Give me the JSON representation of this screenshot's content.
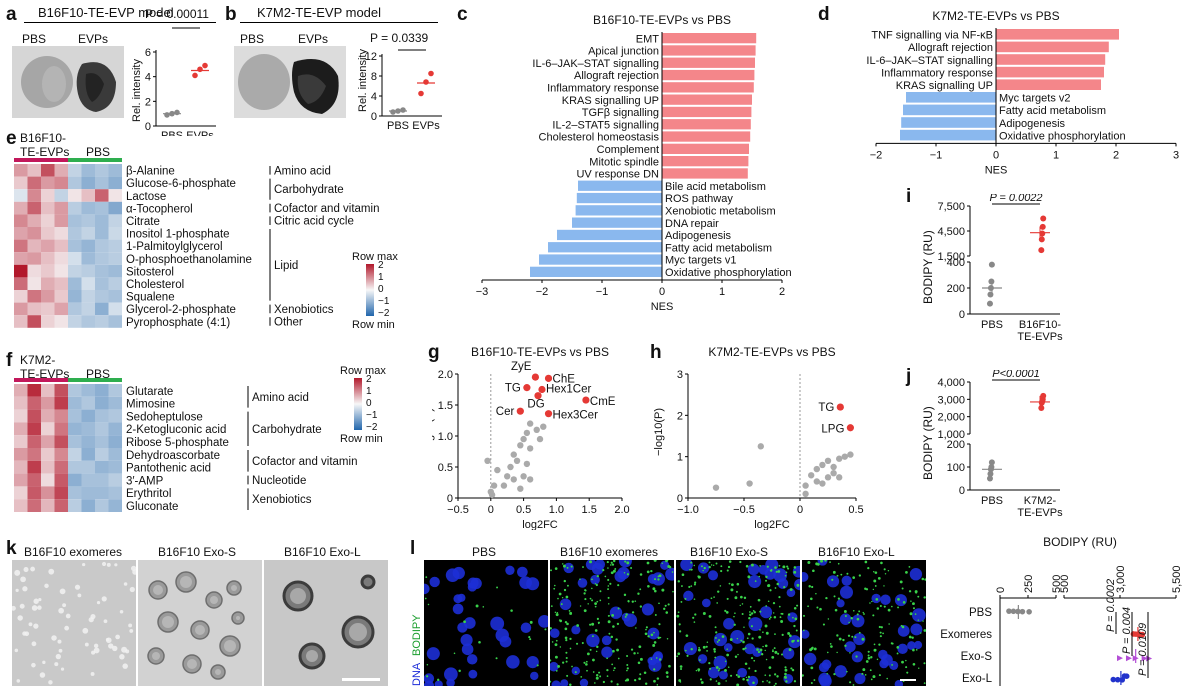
{
  "panel_labels": {
    "a": "a",
    "b": "b",
    "c": "c",
    "d": "d",
    "e": "e",
    "f": "f",
    "g": "g",
    "h": "h",
    "i": "i",
    "j": "j",
    "k": "k",
    "l": "l"
  },
  "panel_a": {
    "title": "B16F10-TE-EVP model",
    "img_labels": [
      "PBS",
      "EVPs"
    ],
    "pvalue": "P = 0.00011",
    "chart_data": {
      "type": "scatter",
      "ylabel": "Rel. intensity",
      "categories": [
        "PBS",
        "EVPs"
      ],
      "yticks": [
        "0",
        "2",
        "4",
        "6"
      ],
      "ylim": [
        0,
        6
      ],
      "points": {
        "PBS": [
          0.9,
          1.0,
          1.1
        ],
        "EVPs": [
          4.1,
          4.6,
          4.9
        ]
      },
      "means": [
        1.0,
        4.5
      ],
      "colors": [
        "#888888",
        "#e53935"
      ]
    }
  },
  "panel_b": {
    "title": "K7M2-TE-EVP model",
    "img_labels": [
      "PBS",
      "EVPs"
    ],
    "pvalue": "P = 0.0339",
    "chart_data": {
      "type": "scatter",
      "ylabel": "Rel. intensity",
      "categories": [
        "PBS",
        "EVPs"
      ],
      "yticks": [
        "0",
        "4",
        "8",
        "12"
      ],
      "ylim": [
        0,
        12
      ],
      "points": {
        "PBS": [
          0.8,
          1.0,
          1.2
        ],
        "EVPs": [
          4.5,
          6.8,
          8.5
        ]
      },
      "means": [
        1.0,
        6.6
      ],
      "colors": [
        "#888888",
        "#e53935"
      ]
    }
  },
  "panel_c": {
    "title": "B16F10-TE-EVPs vs PBS",
    "chart_data": {
      "type": "bar",
      "orientation": "horizontal",
      "xlabel": "NES",
      "xlim": [
        -3,
        2
      ],
      "xticks": [
        "-3",
        "-2",
        "-1",
        "0",
        "1",
        "2"
      ],
      "categories": [
        "EMT",
        "Apical junction",
        "IL-6–JAK–STAT signalling",
        "Allograft rejection",
        "Inflammatory response",
        "KRAS signalling UP",
        "TGFβ signalling",
        "IL-2–STAT5 signalling",
        "Cholesterol homeostasis",
        "Complement",
        "Mitotic spindle",
        "UV response DN",
        "Bile acid metabolism",
        "ROS pathway",
        "Xenobiotic metabolism",
        "DNA repair",
        "Adipogenesis",
        "Fatty acid metabolism",
        "Myc targets v1",
        "Oxidative phosphorylation"
      ],
      "values": [
        1.57,
        1.56,
        1.55,
        1.54,
        1.53,
        1.5,
        1.49,
        1.48,
        1.47,
        1.45,
        1.44,
        1.43,
        -1.4,
        -1.42,
        -1.44,
        -1.5,
        -1.75,
        -1.9,
        -2.05,
        -2.2
      ],
      "colors": {
        "positive": "#f4868a",
        "negative": "#8ab8ee"
      }
    }
  },
  "panel_d": {
    "title": "K7M2-TE-EVPs vs PBS",
    "chart_data": {
      "type": "bar",
      "orientation": "horizontal",
      "xlabel": "NES",
      "xlim": [
        -2,
        3
      ],
      "xticks": [
        "-2",
        "-1",
        "0",
        "1",
        "2",
        "3"
      ],
      "categories": [
        "TNF signalling via NF-κB",
        "Allograft rejection",
        "IL-6–JAK–STAT signalling",
        "Inflammatory response",
        "KRAS signalling UP",
        "Myc targets v2",
        "Fatty acid metabolism",
        "Adipogenesis",
        "Oxidative phosphorylation"
      ],
      "values": [
        2.05,
        1.88,
        1.82,
        1.8,
        1.75,
        -1.5,
        -1.55,
        -1.58,
        -1.6
      ],
      "colors": {
        "positive": "#f4868a",
        "negative": "#8ab8ee"
      }
    }
  },
  "panel_e": {
    "group_labels": [
      "B16F10-",
      "TE-EVPs",
      "PBS"
    ],
    "metabolites": [
      "β-Alanine",
      "Glucose-6-phosphate",
      "Lactose",
      "α-Tocopherol",
      "Citrate",
      "Inositol 1-phosphate",
      "1-Palmitoylglycerol",
      "O-phosphoethanolamine",
      "Sitosterol",
      "Cholesterol",
      "Squalene",
      "Glycerol-2-phosphate",
      "Pyrophosphate (4:1)"
    ],
    "categories": [
      "Amino acid",
      "Carbohydrate",
      "Cofactor and vitamin",
      "Citric acid cycle",
      "Lipid",
      "Xenobiotics",
      "Other"
    ],
    "legend": {
      "title": "Row max",
      "min_label": "Row min",
      "ticks": [
        "2",
        "1",
        "0",
        "−1",
        "−2"
      ]
    },
    "chart_data": {
      "type": "heatmap",
      "rows": 13,
      "cols": 8,
      "colormap": "diverging red-blue",
      "values": [
        [
          1.0,
          0.6,
          1.8,
          0.8,
          -0.6,
          -1.0,
          -0.8,
          -1.0
        ],
        [
          0.5,
          1.5,
          1.0,
          1.2,
          -0.8,
          -1.2,
          -0.9,
          -1.2
        ],
        [
          -0.3,
          1.2,
          0.4,
          -0.6,
          0.2,
          0.6,
          1.6,
          0.2
        ],
        [
          0.8,
          1.6,
          0.6,
          1.0,
          -0.7,
          -1.0,
          -0.9,
          -1.3
        ],
        [
          1.2,
          0.8,
          0.4,
          1.0,
          -0.9,
          -0.8,
          -1.0,
          -0.6
        ],
        [
          0.9,
          1.1,
          0.5,
          0.3,
          -0.8,
          -0.6,
          -1.0,
          -0.5
        ],
        [
          1.4,
          0.7,
          0.9,
          0.6,
          -0.9,
          -1.1,
          -0.8,
          -0.7
        ],
        [
          0.9,
          1.0,
          0.6,
          0.3,
          -0.4,
          -1.0,
          -0.8,
          -0.7
        ],
        [
          2.4,
          0.3,
          0.5,
          0.2,
          -0.6,
          -0.7,
          -0.9,
          -1.0
        ],
        [
          1.5,
          0.2,
          0.8,
          0.6,
          -1.0,
          -0.4,
          -0.9,
          -0.7
        ],
        [
          0.4,
          1.4,
          1.0,
          0.5,
          -1.1,
          -0.6,
          -0.8,
          -0.9
        ],
        [
          1.0,
          0.6,
          0.5,
          0.9,
          -0.8,
          -0.6,
          -1.2,
          -0.4
        ],
        [
          0.6,
          1.8,
          0.4,
          0.2,
          -0.6,
          -0.8,
          -0.7,
          -0.9
        ]
      ]
    }
  },
  "panel_f": {
    "group_labels": [
      "K7M2-",
      "TE-EVPs",
      "PBS"
    ],
    "metabolites": [
      "Glutarate",
      "Mimosine",
      "Sedoheptulose",
      "2-Ketogluconic acid",
      "Ribose 5-phosphate",
      "Dehydroascorbate",
      "Pantothenic acid",
      "3′-AMP",
      "Erythritol",
      "Gluconate"
    ],
    "categories": [
      "Amino acid",
      "Carbohydrate",
      "Cofactor and vitamin",
      "Nucleotide",
      "Xenobiotics"
    ],
    "legend": {
      "title": "Row max",
      "min_label": "Row min",
      "ticks": [
        "2",
        "1",
        "0",
        "−1",
        "−2"
      ]
    },
    "chart_data": {
      "type": "heatmap",
      "rows": 10,
      "cols": 8,
      "colormap": "diverging red-blue",
      "values": [
        [
          0.8,
          2.2,
          0.6,
          1.8,
          -0.8,
          -1.0,
          -1.2,
          -0.8
        ],
        [
          0.6,
          1.6,
          1.0,
          2.0,
          -1.0,
          -0.8,
          -1.2,
          -1.0
        ],
        [
          0.4,
          1.8,
          0.8,
          1.2,
          -0.9,
          -1.2,
          -0.9,
          -0.8
        ],
        [
          0.8,
          2.0,
          0.4,
          1.4,
          -1.1,
          -1.0,
          -0.8,
          -1.1
        ],
        [
          0.5,
          1.6,
          0.9,
          1.8,
          -0.9,
          -1.1,
          -0.9,
          -1.2
        ],
        [
          1.0,
          1.4,
          0.5,
          1.2,
          -0.6,
          -1.2,
          -0.7,
          -1.0
        ],
        [
          0.7,
          2.0,
          0.6,
          1.5,
          -0.8,
          -0.8,
          -1.1,
          -1.0
        ],
        [
          0.9,
          1.6,
          0.3,
          1.7,
          -1.2,
          -0.9,
          -0.9,
          -0.7
        ],
        [
          0.4,
          1.7,
          1.1,
          1.9,
          -0.9,
          -1.0,
          -1.0,
          -0.9
        ],
        [
          0.6,
          1.5,
          0.7,
          1.6,
          -0.7,
          -1.2,
          -0.8,
          -1.1
        ]
      ]
    }
  },
  "panel_g": {
    "title": "B16F10-TE-EVPs vs PBS",
    "chart_data": {
      "type": "scatter",
      "xlabel": "log2FC",
      "ylabel": "−log10(P)",
      "xlim": [
        -0.5,
        2.0
      ],
      "ylim": [
        0,
        2.0
      ],
      "xticks": [
        "−0.5",
        "0",
        "0.5",
        "1.0",
        "1.5",
        "2.0"
      ],
      "yticks": [
        "0",
        "0.5",
        "1.0",
        "1.5",
        "2.0"
      ],
      "highlighted": [
        {
          "label": "ZyE",
          "x": 0.68,
          "y": 1.95
        },
        {
          "label": "ChE",
          "x": 0.88,
          "y": 1.93
        },
        {
          "label": "TG",
          "x": 0.55,
          "y": 1.78
        },
        {
          "label": "Hex1Cer",
          "x": 0.78,
          "y": 1.75
        },
        {
          "label": "DG",
          "x": 0.72,
          "y": 1.65
        },
        {
          "label": "CmE",
          "x": 1.45,
          "y": 1.58
        },
        {
          "label": "Hex3Cer",
          "x": 0.88,
          "y": 1.36
        },
        {
          "label": "Cer",
          "x": 0.45,
          "y": 1.4
        }
      ],
      "other_points": [
        [
          0.6,
          1.2
        ],
        [
          0.55,
          1.05
        ],
        [
          0.7,
          1.1
        ],
        [
          0.8,
          1.15
        ],
        [
          0.5,
          0.95
        ],
        [
          0.45,
          0.85
        ],
        [
          0.6,
          0.8
        ],
        [
          0.35,
          0.7
        ],
        [
          0.4,
          0.6
        ],
        [
          0.55,
          0.55
        ],
        [
          0.3,
          0.5
        ],
        [
          0.25,
          0.35
        ],
        [
          0.5,
          0.35
        ],
        [
          0.2,
          0.2
        ],
        [
          0.45,
          0.15
        ],
        [
          0.0,
          0.1
        ],
        [
          0.02,
          0.05
        ],
        [
          0.05,
          0.2
        ],
        [
          0.6,
          0.3
        ],
        [
          0.1,
          0.45
        ],
        [
          0.75,
          0.95
        ],
        [
          -0.05,
          0.6
        ],
        [
          0.35,
          0.3
        ]
      ],
      "colors": {
        "highlight": "#e53935",
        "other": "#aaaaaa"
      }
    }
  },
  "panel_h": {
    "title": "K7M2-TE-EVPs vs PBS",
    "chart_data": {
      "type": "scatter",
      "xlabel": "log2FC",
      "ylabel": "−log10(P)",
      "xlim": [
        -1.0,
        0.5
      ],
      "ylim": [
        0,
        3
      ],
      "xticks": [
        "−1.0",
        "−0.5",
        "0",
        "0.5"
      ],
      "yticks": [
        "0",
        "1",
        "2",
        "3"
      ],
      "highlighted": [
        {
          "label": "TG",
          "x": 0.36,
          "y": 2.2
        },
        {
          "label": "LPG",
          "x": 0.45,
          "y": 1.7
        }
      ],
      "other_points": [
        [
          -0.35,
          1.25
        ],
        [
          -0.75,
          0.25
        ],
        [
          -0.45,
          0.35
        ],
        [
          0.05,
          0.3
        ],
        [
          0.1,
          0.55
        ],
        [
          0.15,
          0.7
        ],
        [
          0.2,
          0.8
        ],
        [
          0.25,
          0.9
        ],
        [
          0.3,
          0.75
        ],
        [
          0.35,
          0.95
        ],
        [
          0.4,
          1.0
        ],
        [
          0.15,
          0.4
        ],
        [
          0.25,
          0.5
        ],
        [
          0.3,
          0.6
        ],
        [
          0.45,
          1.05
        ],
        [
          0.05,
          0.1
        ],
        [
          0.2,
          0.35
        ],
        [
          0.35,
          0.5
        ]
      ],
      "colors": {
        "highlight": "#e53935",
        "other": "#aaaaaa"
      }
    }
  },
  "panel_i": {
    "pvalue": "P = 0.0022",
    "chart_data": {
      "type": "scatter",
      "ylabel": "BODIPY (RU)",
      "categories": [
        "PBS",
        "B16F10-TE-EVPs"
      ],
      "cat_lines": [
        [
          "PBS"
        ],
        [
          "B16F10-",
          "TE-EVPs"
        ]
      ],
      "axis_break": true,
      "lower_ticks": [
        "0",
        "200",
        "400"
      ],
      "upper_ticks": [
        "1,500",
        "4,500",
        "7,500"
      ],
      "points": {
        "PBS": [
          80,
          150,
          200,
          250,
          380
        ],
        "B16F10-TE-EVPs": [
          2200,
          3500,
          4200,
          5000,
          6000
        ]
      },
      "means": [
        200,
        4300
      ],
      "colors": [
        "#888888",
        "#e53935"
      ]
    }
  },
  "panel_j": {
    "pvalue": "P<0.0001",
    "chart_data": {
      "type": "scatter",
      "ylabel": "BODIPY (RU)",
      "categories": [
        "PBS",
        "K7M2-TE-EVPs"
      ],
      "cat_lines": [
        [
          "PBS"
        ],
        [
          "K7M2-",
          "TE-EVPs"
        ]
      ],
      "axis_break": true,
      "lower_ticks": [
        "0",
        "100",
        "200"
      ],
      "upper_ticks": [
        "1,000",
        "2,000",
        "3,000",
        "4,000"
      ],
      "points": {
        "PBS": [
          50,
          70,
          90,
          100,
          120
        ],
        "K7M2-TE-EVPs": [
          2500,
          2800,
          2900,
          3000,
          3200
        ]
      },
      "means": [
        90,
        2850
      ],
      "colors": [
        "#888888",
        "#e53935"
      ]
    }
  },
  "panel_k": {
    "labels": [
      "B16F10 exomeres",
      "B16F10 Exo-S",
      "B16F10 Exo-L"
    ]
  },
  "panel_l": {
    "labels": [
      "PBS",
      "B16F10 exomeres",
      "B16F10 Exo-S",
      "B16F10 Exo-L"
    ],
    "side_label_dna": "DNA",
    "side_label_bodipy": "BODIPY",
    "chart": {
      "title": "BODIPY (RU)",
      "xticks": [
        "0",
        "250",
        "500",
        "500",
        "3,000",
        "5,500"
      ],
      "categories": [
        "PBS",
        "Exomeres",
        "Exo-S",
        "Exo-L"
      ],
      "pvalues": [
        "P = 0.0002",
        "P = 0.004",
        "P = 0.0109"
      ],
      "chart_data": {
        "type": "scatter",
        "orientation": "horizontal",
        "xlabel": "BODIPY (RU)",
        "axis_break": true,
        "points": {
          "PBS": [
            80,
            120,
            160,
            200,
            260
          ],
          "Exomeres": [
            3600,
            3700,
            3800,
            3900,
            4000
          ],
          "Exo-S": [
            3000,
            3400,
            3700,
            4100,
            4300
          ],
          "Exo-L": [
            2700,
            2900,
            3100,
            3200,
            3300
          ]
        },
        "colors": {
          "PBS": "#888888",
          "Exomeres": "#e53935",
          "Exo-S": "#b44fd6",
          "Exo-L": "#2233cc"
        }
      }
    }
  }
}
